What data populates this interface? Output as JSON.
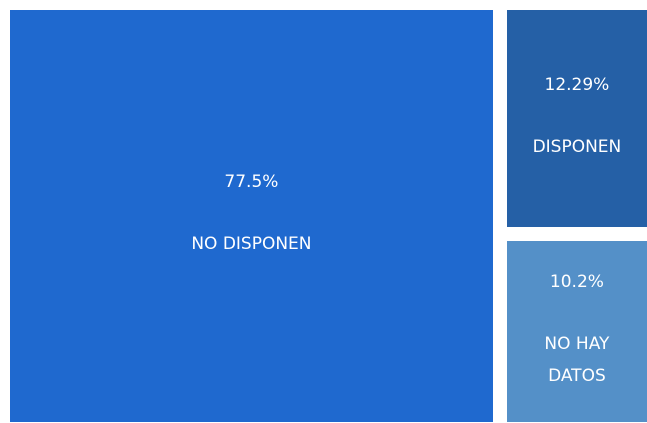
{
  "chart_data": {
    "type": "treemap",
    "categories": [
      "NO DISPONEN",
      "DISPONEN",
      "NO HAY DATOS"
    ],
    "values": [
      77.5,
      12.29,
      10.2
    ],
    "value_labels": [
      "77.5%",
      "12.29%",
      "10.2%"
    ],
    "colors": [
      "#1f69cf",
      "#2560a6",
      "#5490c8"
    ]
  }
}
